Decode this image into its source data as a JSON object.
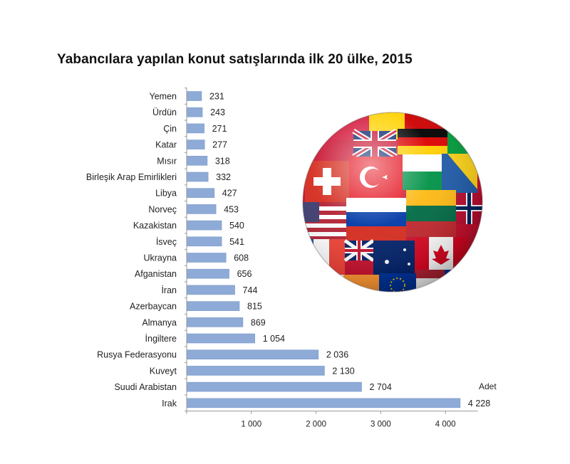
{
  "title": "Yabancılara yapılan konut satışlarında ilk 20 ülke, 2015",
  "colors": {
    "bar": "#8EAAD6",
    "bar_edge": "#7F9CCC",
    "axis": "#999999"
  },
  "chart_data": {
    "type": "bar",
    "orientation": "horizontal",
    "categories": [
      "Yemen",
      "Ürdün",
      "Çin",
      "Katar",
      "Mısır",
      "Birleşik Arap Emirlikleri",
      "Libya",
      "Norveç",
      "Kazakistan",
      "İsveç",
      "Ukrayna",
      "Afganistan",
      "İran",
      "Azerbaycan",
      "Almanya",
      "İngiltere",
      "Rusya Federasyonu",
      "Kuveyt",
      "Suudi Arabistan",
      "Irak"
    ],
    "values": [
      231,
      243,
      271,
      277,
      318,
      332,
      427,
      453,
      540,
      541,
      608,
      656,
      744,
      815,
      869,
      1054,
      2036,
      2130,
      2704,
      4228
    ],
    "value_labels": [
      "231",
      "243",
      "271",
      "277",
      "318",
      "332",
      "427",
      "453",
      "540",
      "541",
      "608",
      "656",
      "744",
      "815",
      "869",
      "1 054",
      "2 036",
      "2 130",
      "2 704",
      "4 228"
    ],
    "xlim": [
      0,
      4500
    ],
    "xticks": [
      1000,
      2000,
      3000,
      4000
    ],
    "xtick_labels": [
      "1 000",
      "2 000",
      "3 000",
      "4 000"
    ],
    "unit_label": "Adet",
    "grid": false,
    "legend": "none"
  },
  "decoration": {
    "globe_icon": "flag-globe-icon"
  }
}
